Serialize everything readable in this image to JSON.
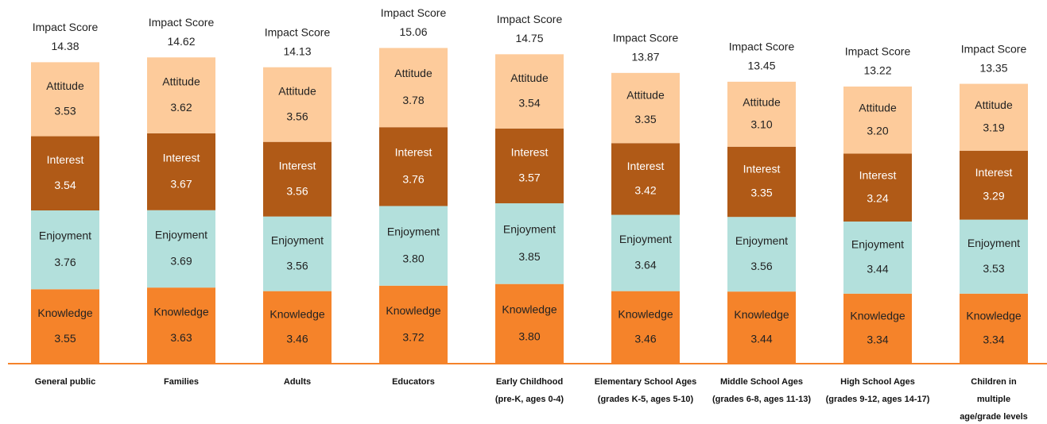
{
  "chart_data": {
    "type": "stacked_bar",
    "categories": [
      "General public",
      "Families",
      "Adults",
      "Educators",
      "Early Childhood\n(pre-K, ages 0-4)",
      "Elementary School Ages\n(grades K-5, ages 5-10)",
      "Middle School Ages\n(grades 6-8, ages 11-13)",
      "High School Ages\n(grades 9-12, ages 14-17)",
      "Children in\nmultiple\nage/grade levels"
    ],
    "series": [
      {
        "name": "Knowledge",
        "color": "#f5832a",
        "values": [
          3.55,
          3.63,
          3.46,
          3.72,
          3.8,
          3.46,
          3.44,
          3.34,
          3.34
        ],
        "value_labels": [
          "3.55",
          "3.63",
          "3.46",
          "3.72",
          "3.80",
          "3.46",
          "3.44",
          "3.34",
          "3.34"
        ]
      },
      {
        "name": "Enjoyment",
        "color": "#b3e0dc",
        "values": [
          3.76,
          3.69,
          3.56,
          3.8,
          3.85,
          3.64,
          3.56,
          3.44,
          3.53
        ],
        "value_labels": [
          "3.76",
          "3.69",
          "3.56",
          "3.80",
          "3.85",
          "3.64",
          "3.56",
          "3.44",
          "3.53"
        ]
      },
      {
        "name": "Interest",
        "color": "#b05a17",
        "values": [
          3.54,
          3.67,
          3.56,
          3.76,
          3.57,
          3.42,
          3.35,
          3.24,
          3.29
        ],
        "value_labels": [
          "3.54",
          "3.67",
          "3.56",
          "3.76",
          "3.57",
          "3.42",
          "3.35",
          "3.24",
          "3.29"
        ]
      },
      {
        "name": "Attitude",
        "color": "#fdcb9b",
        "values": [
          3.53,
          3.62,
          3.56,
          3.78,
          3.54,
          3.35,
          3.1,
          3.2,
          3.19
        ],
        "value_labels": [
          "3.53",
          "3.62",
          "3.56",
          "3.78",
          "3.54",
          "3.35",
          "3.10",
          "3.20",
          "3.19"
        ]
      }
    ],
    "total_label": "Impact Score",
    "totals": [
      14.38,
      14.62,
      14.13,
      15.06,
      14.75,
      13.87,
      13.45,
      13.22,
      13.35
    ]
  }
}
